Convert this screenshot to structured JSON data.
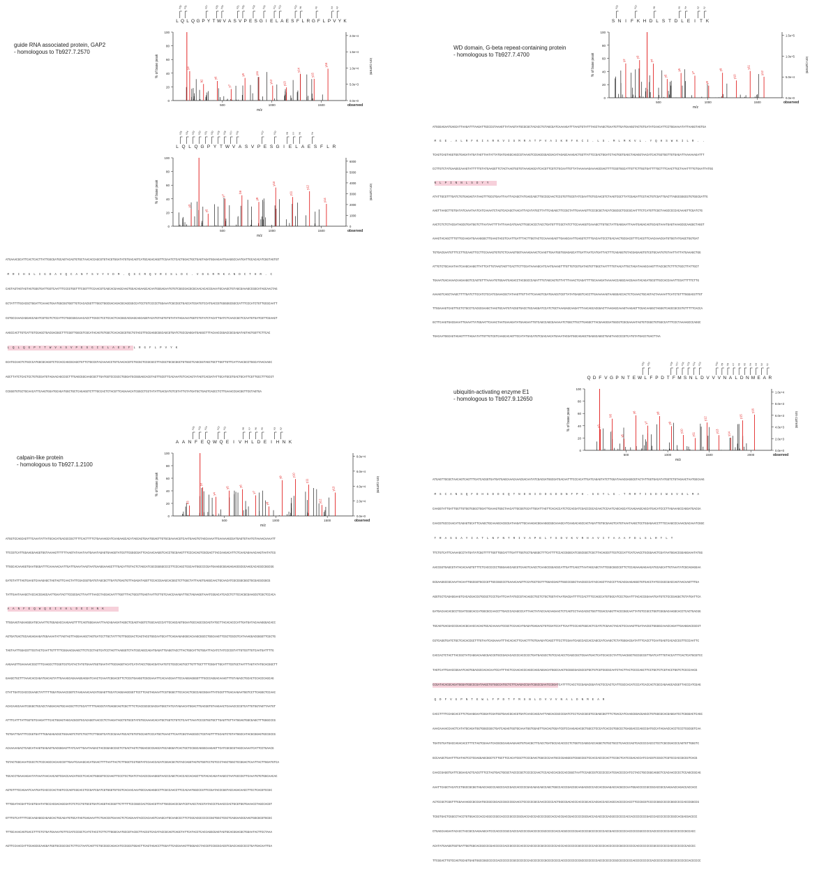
{
  "panels": [
    {
      "id": "gap2",
      "title": "guide RNA associated protein, GAP2",
      "subtitle": "- homologous to Tb927.7.2570",
      "spectra": [
        {
          "peptide": "LQLQGPYTWVASVPESGIELAESFLRGFLPVYK",
          "ylabel": "% of base peak",
          "y2label": "ion current",
          "xlabel": "m/z",
          "observed": "observed",
          "xticks": [
            "500",
            "1000",
            "1500"
          ],
          "yticks": [
            "0",
            "20",
            "40",
            "60",
            "80",
            "100"
          ],
          "y2ticks": [
            "0.0e+0",
            "5.0e+3",
            "1.0e+4",
            "1.5e+4",
            "2.0e+4"
          ],
          "ion_labels": [
            "y3",
            "b2",
            "y6",
            "y7",
            "y9",
            "y11",
            "y12",
            "y13",
            "y14",
            "y15",
            "y16"
          ]
        },
        {
          "peptide": "LQLQGPYTWVASVPESGIELAESFLR",
          "ylabel": "% of base peak",
          "y2label": "ion current",
          "xlabel": "m/z",
          "observed": "observed",
          "xticks": [
            "500",
            "1000",
            "1500"
          ],
          "yticks": [
            "0",
            "20",
            "40",
            "60",
            "80",
            "100"
          ],
          "y2ticks": [
            "0",
            "1000",
            "2000",
            "3000",
            "4000",
            "5000",
            "6000"
          ],
          "ion_labels": [
            "y3",
            "y5",
            "y7",
            "b9",
            "y9",
            "y10",
            "y11",
            "y12",
            "y14"
          ]
        }
      ]
    },
    {
      "id": "wd",
      "title": "WD domain, G-beta repeat-containing protein",
      "subtitle": "- homologous to Tb927.7.4700",
      "spectra": [
        {
          "peptide": "SNIFKHDLSTDLEITK",
          "ylabel": "% of base peak",
          "y2label": "ion current",
          "xlabel": "m/z",
          "observed": "observed",
          "xticks": [
            "500",
            "1000",
            "1500"
          ],
          "yticks": [
            "0",
            "20",
            "40",
            "60",
            "80",
            "100"
          ],
          "y2ticks": [
            "0.0e+0",
            "5.0e+4",
            "1.0e+5",
            "1.5e+5"
          ],
          "ion_labels": [
            "y2",
            "y3",
            "y4",
            "y5",
            "y6",
            "y7",
            "y8",
            "y9",
            "y10",
            "y11",
            "y12"
          ]
        }
      ]
    },
    {
      "id": "e1",
      "title": "ubiquitin-activating enzyme E1",
      "subtitle": "- homologous to Tb927.9.12650",
      "spectra": [
        {
          "peptide": "QDFVGPNTEWLFPDTFMSNLDVVVNALDNMEAR",
          "ylabel": "% of base peak",
          "y2label": "ion current",
          "xlabel": "m/z",
          "observed": "observed",
          "xticks": [
            "500",
            "1000",
            "1500",
            "2000"
          ],
          "yticks": [
            "0",
            "20",
            "40",
            "60",
            "80",
            "100"
          ],
          "y2ticks": [
            "0.0e+0",
            "2.0e+3",
            "4.0e+3",
            "6.0e+3",
            "8.0e+3",
            "1.0e+4"
          ],
          "ion_labels": [
            "y3",
            "b5",
            "y5",
            "y6",
            "y7",
            "y8",
            "y9",
            "y10",
            "y11",
            "y12",
            "y13",
            "y14",
            "y15",
            "y16"
          ]
        }
      ]
    },
    {
      "id": "calpain",
      "title": "calpain-like protein",
      "subtitle": "- homologous to Tb927.1.2100",
      "spectra": [
        {
          "peptide": "AANFEQWQEIVHLDEIHNK",
          "ylabel": "% of base peak",
          "y2label": "ion current",
          "xlabel": "m/z",
          "observed": "observed",
          "xticks": [
            "500",
            "1000",
            "1500"
          ],
          "yticks": [
            "0",
            "20",
            "40",
            "60",
            "80",
            "100"
          ],
          "y2ticks": [
            "0.0e+0",
            "2.0e+4",
            "4.0e+4",
            "6.0e+4",
            "8.0e+4"
          ],
          "ion_labels": [
            "b3",
            "y3",
            "y4",
            "y5",
            "y6",
            "y7",
            "y8",
            "y9",
            "y10",
            "y11",
            "y12",
            "y13"
          ]
        }
      ]
    }
  ],
  "sequence_blocks": [
    {
      "id": "seq-gap2",
      "lines": [
        "ATGAAACGCATTCACTCACTTATTGGCGATGCAGTACAGTGTGCTAACACCAGCGTGTACGTGGATATGTGACAGTCATGCAGACAGGTTCGAATCTCACTGGACTGCTGAGTAGATGGAAGAATGAAGGCCAATGATTGCACACATCGGTAGTGT",
        " M  R  I  H  S  L  I  G  D  A  V  Q  C  A  N  T  S  V  Y  V  D  M  .  Q  S  C  R  Q  V  R  I  S  L  D  C  .  V  D  G  R  M  K  A  N  D  C  T  H  R  .  C",
        "CAGTAGTAGTAGTAGTGGGTGATTGGTCAATTTCCCGTGGTTTCGGTTTCCAACGTCAGCACGAAGCAAGTGGACAGAAGCACAATGGGAGAATGTGTCGGCGACGCGCAACACACCGAAATGCAAGCTGTAGCGAAAGCCGGCATAGCAACTAG",
        "GCTATTTTGCACGCTGGATTCAAAGTGAATGGCGGTGGTTGTCACACGGTTTGGCTGGCGACAGACGCAGCGGCCATCCTGTCCCCCTGGAAATCGCCGCTGACCATCGATGTCCATGACCGTGGGGGCGGCCATTTCCCATCTGTTGCGCAATT",
        "CGTGCCAAACAGGAGCAGATCGTCGTCTCCATTCTGGCGGCAAACACCTTCGCCTCCTCCACTCACGGCACGAGCAGCAGGTACATGTAGTGTGTATATAGAAAATGGTCTGTATCTACATTGATCTCAACCGCTCCAATGTGATCGTTCGAAGT",
        "AAGCCACTTGTCATTGTCGAGCTGACGACGGCTTTCGGTTGGCGTCGCATACAGTGTGGCTCACACGCGTGCTGTACGTTGCGAGGCGGCAGCGTGATCTGCCGAGGATGAGGCTTTACAACCGGACCGCGAGATAGTAGTGGTTCTTCAC",
        " L  Q  L  Q  G  P  Y  T  W  V  A  S  V  P  E  S  G  I  E  L  A  E  S  F  L  R  G  F  L  P  V  Y  K",
        "GCATGCAACTCTGCCCATGGCGCAGGTCTCCACCAGCGCAGCTGTTCTGCCGTACAAAACCTGTCAACACGTCTGCGCTCCGCGCCTTACGCTGCGCGGCTGTGGCTCAGCGGTAGCTGCTTGGTTGTTCATTAACGCCTGGCATAACAAGC",
        "AGCTTATCTCACTCCTGTGCGATGTAGAACAGCCGCTTTGAGCGGCAAGCGCTTGATGGTCCCGCCTGGGATGCGGGAGCACGTAGTTGCGTTCACAAATGTCACAGTATAGTCACGATATTGCATGCGTGACTGCATTCGTTGCCTTTGCGT",
        "CCGGGTGTGCTGCAACATTCAAGTGGATGCAGATGGCTGCTCAGAGGTCTTTGCCACTCTACGTTCAGAAACATCGGCCTCGTATATTGACGATGTCGTATTGTATGATGCTGAGTCAGCCTCTTGAAACCGACGGTTCGTAGTGA"
      ],
      "hl": [
        6
      ]
    },
    {
      "id": "seq-wd",
      "lines": [
        "ATGGGAGAATGAGCATTAAGATTTAAGATTGCCCGTAAAGTTATAAGTATGCGCGCTACACCTGTAGCGATCAAAAGATTTAAGTGTATTTAGCTAAGCTGAATGTTGATGAAGGTACTGTGATATCAACATTCCTGGAAAATATTAAGGTAGTGA",
        " M  G  E  .  A  L  R  F  K  I  A  R  K  V  I  S  M  R  A  T  P  V  A  I  K  R  F  K  C  I  .  L  S  .  M  L  M  K  V  L  .  Y  Q  H  S  W  K  I  L  R  .  .",
        "TCAGTCAGTAGGTGGTGAGATATGATAGTTAATATTATGATGAGGCAGCCGTAAAGTCCGAGCGGACGACATAGAGCAAAGACTGGTTATTCCGACTGGATCTAGTGGTGAGCTAGAGGTAACATCACTGGTGGTTGTGAGATTAAAAAAGATTT",
        "CCTTGTCTATGAAGGCAAAGTATTTTTGTATGAAGGTTCTACTAAGTGGTGTAAAGAGCATCACGTTCGTCTGCAATTGTTATAAAAAAGAAAAGCGAGTTTTCGGTGGCATTGTTCTTGGTGATTTTGCTTTCAACTTGCTAAATTTTGTGAATTATGG",
        " N  L  P  I  N  N  L  S  D  Y  Y",
        "ATATTGCGTTTGATCTGTGAGAGTATAAGTTTGCGTGAATTAATTACAGCTATGAGCAGCTTGCCGCAACTCCGTGTTGCGTATCGAATTGTGCAACGTCTAAGTCGCTTATCGAGATTCGTACTGTCGATTGACTTAGGCGGGCGTGTGGCGATTG",
        "AAGTTAAGCTTGTGATATCAAATAATCATCAAAATCTAGTCACAGCTAACATTACATATGCTTATTCAGAGCTTCCGCTATTGAAAAGTTCCCGCGCTACATCGGCGCTCGCGCAATTTCTCATGTTCGCTAAGCCCCCACAAAGTTCGATCTG",
        "AACTCTCTCTACGATAGCGTGATGGTCTTAATAATTTTATTAAACATGAACTTGGCACCCTACCTGATGTTTCGCTATCTTCCAAAGGTCAAAGCTTGTGCTATTGAGGAATTAAATGAGACAGTGCAGTAAATGAGTAAAGCGCAAGGCTAGGT",
        "AAAGTACAGCTTTGTTGCAAGATGAAAGGGCTTGAAGTACGTCAATTGATTTACTTGGTACTCCAAAAGAGTTGAAGCAATTGAGGTCTTTGACAATCCCTGACAACTGCGACGTTTCACGTTCAACAAACGATGTGGTATGAGCTGGTGAT",
        "TGTGACGAATGTTTCCTTGCAAGTTCCTTCCAAAGTGTGTCTCAAAGTGGTAAAAGAAACTCAAGTTGAATGGTGGAGAGCATTGATTAATCATGATTACTTTCAGAGGTGTACGAGAAGTGTCGTGCAATGTGTAATTATTATGAAAGCTGG",
        "ATTGTCTGCAAATAATCAAGCAAGGTTATTCATTGTAAGTAGTTCACTTCTTCGATAAAAGCATCAATGAAAGTTTGTTGTCGTGATAGTGTTGGCTAATTTTGTAACATTGCTAGATAAAGCAAGTTTACCGCTCTTTCTGCCTTATTGCT",
        "TGAAATGACAAAACAAGAAGGTCCAGTGTTTAAAATGTGGAATGAGACCTACGGCCCAGATTTGTAGCAGTGTTATTTAAACTCAGATTTTGCAAAGATAAAAACCAGGCAACGAAATACAGATGCGTTGCCACCAAATTCGATTTTTCTTG",
        "AAAAGTCAGCTAAGCTTTTGATCTTCCATCTCCATCGAAACGCTATAAGTTGTTATTCAAAGTCGATGAACGTCGTTATATGAGGTCACCTTGAAAAAAGTAAGGGACCACTCTCAAACTGCAGTACTAAAAATTCATCTGTTTGGGACGTTGT",
        "TTGGAAAGTCAGTTGCTCTGCCTCACGCGAAGCTAAGTGCAATGTACGGTGACCTGCAAGGATCCATCTGCTAAAGAGCAAGATTTAACAGCACGGACTTAAGAGCAAAGTAAGAGTTCGACAAGGCTAGGGTCAGCCGCCGTGTTTTTCACCA",
        "GCTTCAAGTGACGAAATTGAAATTATGGAATTCAAACTAATGAAAGATATGAAGAATTGTCAGCCAGCGAAAAATCTGGCTTGCTTGAGGCTTACGAAGCGATGGCGTCGCGAAAATAGTGTCGGCTGTGGCCATTTCCCTAAAAGCCCAGGC",
        "TGACAATGGCAGTAGAGTTTTAGAATATTGTTGTCGTCAAGCACAGTTCCATATGACATGTCGACAACATGAAATACGATGGCAGAGCTGAGGCAGGCTGAGTAACCCCGTCATGTATGACCTGACTTAA"
      ],
      "hl": [
        4
      ]
    },
    {
      "id": "seq-calpain",
      "lines": [
        "ATGGTCCAGCAGTTTCAAATATTATGCACATGACGCCGCTTTTCACTTTTCTGAAAAGCATCAAGAAGCACATAGCAGTGAATGGAGTTGTGCGAAAACGTCAATGAAGTGTAGCAAAATTGAAAAAGCGATGAGTGTAATGTAAAACAAAATT",
        "TTCCGTCATTGGAAGGAAGGTGGTAAAAGTTTTTTAAGTATAAATAATGAAATAGAGTGAAGGTATCGTTCGGGCGATTCACAACAAGGTCACCTGCGAAGTTTCCCACAGTCGCGACTTACCAAGACATTCTCAACAGAAACAAGTAATATCG",
        "TTGGCACAAAGGTGAATGGGATTTCAAAAACAATTGATTGAAATAAGTAATGAAGGAAAGCTTTGACATTGTACTCTAGCATCGCCGGGGCCCCTTCCCAGCTCGCAATGGCCCCGATGAAGGCGGAGAGAGCGCGCAAGCACACGCCGGCGG",
        "GATGTATTTAGTGAAGTCAAAGAGCTAGTAGTTCAACTATTCGACGGTGATGTAGCGCTTGATGTGAGTGTTAGAGATAGGTTCCACCGAAGCACGGCTCTTGGCTATTAAGTGAGGCAACTGCAACATCGCCGGCGGCTGCGACGCGGCG",
        "TATTGAATAAAGCTACCACCGAGCAATTGAATACTTCCGCGACTTAATTTAACCTACGACAATTTGGTTTACTGCGTTGAGTAATTGTTGTCAACCAAAGATTGCTAGAAGGTAAATCGGACATCACCTCTTCCACGCGAAGCGTCGCTCCACA",
        " A  A  N  F  E  Q  W  Q  E  I  V  H  L  D  E  I  H  N  K",
        "TTGGAAGTAGAAGGGATGCAAATTGTGGAGACCAAGAAGTTTTCAGTGGGAAAATTAACAGAAGATAGGCTCGAGTAGGTCTGGCAACCCATTCCAGCAGTGGAATGCCAGCCGCAGTATGCTTACACACCCATTGATGATACAAAGGGACACC",
        "AGTGATGACTGCAAGAGAAGATGGAAAATATTAGTAGTTAGGAAAGCTAGTGATCCTTGCTATTTGTTGGCGACTCAGTACGTGGCAATGCATTCAGAAGAGGGCACAAGCGGCCTGGCAAGTTCGCTCGCGTCATAAAGGACGGGGTTCGCTG",
        "TAGTAATTGGACGTTCGTACTCAATTGTTTTTCGGAACGAAGCTTCTCCCTAGTCATCCTAGTTAAGGGTCTATCGCAGCCAGATGAGATTGAGGTACCTTACTGGCATTGTGGATTACATCTATCCCCGTATTGTCGTTGTCAATGATTTTG",
        "AAGAAGTTGAAAAACCGCTTTCAAGCCTTCGGTCGTCATACTATGTGAAATGGTGAATATTGCGAGGTACATCATATACCTGGACGATAATGTCTCGCCAGTGCTTGTTTGCTTTTCGGATTGCATTTCGTGCTAATTTAGTATATGCACGGCTT",
        "GAAGCTGCTTTAAACACCAGATGACAGTATTGAAAGCAGAAAGGAGGATCAACTCAAATCGGACGTTCTCCGTGAAGGTCGCGAAATTCACAACGAATTCCAAGGAGGGGTTTGCCCAGGACAAAGTTTGTAGACCTGCACTCCACCCAGCAG",
        "CTATTGATCCACCCGAAGCTATTTTTGGATGAAACCGGTCTAAGAAACAACATGGAGTTGCATCAGGAAGCGGTTCCTTCAGTAGAAATTCGTGGGCTTCCACACTCGCCAGCGGAATTATGCGTTTGACAAGAATGGTCCTTCAGGCTCCAAC",
        "ACACAAGCAAATCGGGCTGCACCTAGGACAGTGCAACGCTTCTGCATTTTTGAGCGTATGAGGCAGTCGCTTTCTCACCGCGCGACGATGGCTATCATAGAACATGGACTTGACGGTGTAAGAACTCAAACCCCGTCATTGTGGTAGTTAATGT",
        "ATTTCATTTATTGGTGTCAAGATTTCACTGGAGTAGCACGCGTGCACAGGTAACCCTCTAAGATAGCTGTGCGTATGTGCAAAACACATGCTGGTCTGTCTCAATTAAATCCCGTGGTGCTTGAGTTGTTATGGAGTGGCGAGCTTTGGGCCCG",
        "TGTGATTGATTTCCGGTGATTTGGAGAGACGCTGGAAGTCTGTCTGCTTCTTGGGTCATCCCGAAATGCACTGTGTGCCAGTCCCATGCTGAACTTCAATCGGTAAGCGCCTCGTAGTTTTGCAGTCTGTATGGCCATACGCGGAGTGCCGCCG",
        "ACAAAAAGACTCAGCATAAGTGAGAGTGACGGGAGTTATCAATTGAATAAGACTACCGGAGCCGCTCTGACTAGTCTGGACGCCGAGCATGCAGGGATCACTGCTCCGGCAGGGCAAGAGTTCATCGCGCGTAGCCAAAATCATTCCTGAACG",
        "TGTACTGGCAAATCGCCTCTCCCAGCCACAACCGTTGAATCAAAGCACATGAACTTTTAATTACTCTTGGCTCGTGGTATCCAACCACATCGGACGCTGTACCAGGTAGTGTGGTCCTGTCCCTAGCTGGCTCCGGACTCAATTACTTGGATGTCA",
        "TGCACCTGAAAAGAATATAAATAACAACAGTCGACCAACATGCCTCACACTGGGGTCCCAAGTTCCCTCCTGATCTACACCCGAAGGGTAACCCAGCTCACCACCACAGCTTGTACACAGATAAGCCTAATGCCCGTTCAAATGTGTGGCAACAC",
        "AGTGTTTCCAGAATCAATGATCACCCCACTAGTCCCAGTCGCACCTCCGATCGATCGTGGGTGTCGTCACAACAAATGCCAAGAGGCCTTCGCCAACCTTCCACAATGGCCCGTTCCGATACCCGGTACCAGACAACCTTCCTCACGTCCGC",
        "TTTGGATACGATTCAGTGAATATGCCACGACAGCGATCTCTCCTGTGCGTGATCAGGTACCGGTTCTTTTTCCCGGCCACTCGACGTTATTGGCGACCCGATCGTAACCTACGTATACCCTGAACCCACTGCGTGGTGAAACCTAGCCACGT",
        "GTTTGTCATTTTCGCAAGAGGCAGAGCACTGCAGATGTGCATAGTGAGAAATTCTGACCGTGAAACTCTCAGAAATACCCACAAGTCAAGCATGCAAGCCCTTCTCGCACGCCCCCCGGTGGCTCGCTCAGGAACGCAAGTGGCGCGTGCGC",
        "TTTGCAAACAGTGACCTTTCTCTGATGAAAATGTTCCATCCCGCTCATCTACCTCTTCTTGGGCAATGCCGTACGCTTACCGTCACATACCGCAGTCAGCTATTCATACCTCACCAGGCGAGTAGTGCACGGACGCTGGAATACTTCCTAAA",
        "AGTTCCAACCATTCGAGCGCAAGGATGGTGCCGCCGCTCTTCCTAATCAGTTCTGCCGCCAGACATCCCGCGTGGACTTCAGTAGACCTTGGATTCACGAAAGTTGGGACCTACCGTCCGCGCACGTCGACCAGCCCCCTGATGACAATTGA"
      ],
      "hl": [
        5
      ]
    },
    {
      "id": "seq-e1",
      "lines": [
        "ATGAGTTGCGCTAACAGTCAGTTTGATCACGGTGATGATGAGCAAACAAACGACAATATCGACGATGGCGATGACAATTTCCCACATTGATCAGAGTATCTTGGATAAACGAGGCGTACTATTGGTGACATATGGTCTGTAGAACTAATGGCAAG",
        " M  S  C  A  N  S  Q  F  D  H  G  D  D  E  Q  T  N  D  N  I  D  D  G  D  D  N  F  P  H  .  S  E  Y  L  G  .  T  R  R  T  I  G  D  I  W  S  V  E  L  M  A",
        "CAAGGTATTGATTGGTTGTGGTGGGCTGGATTGAAAGTGGCTAACATTGCGGTGCATTGGATTAGTTCACACCATCTCCACGATCGACCCGCACAACTCCAATCAGCAGCATCAAGAAGCAGCATGACATCCCTTAGAAAGCCAGGATGACGA",
        "CAACGTGCCCAACATCAGAGTGCATTCAAGCTGCAAAGCACGCGATAAGATTGCAAAGACGGAAGGCGGCAAAGCATCAAGACAGCCACTAGATTGTGCGAAGTCATGTAAATAAGCTCCTGGAGAACCTTTCCAAGCCCAAACGACAAATCGGC",
        " T  R  A  S  G  A  Y  I  A  T  L  N  F  N  T  R  I  V  A  P  E  L  T  S  D  V  K  V  R  H  A  V  I  T  A  A  A  F  D  L  S  L  R  T  L  T",
        "TTCTGTCATTCAAAAGCCTATGATATCGGTTTTTGGTTGGCATTTGATTTGGTGCTGAGGGCTTTCATTTTCCACCGGGCATCGGCGGCTCGCTTACAGCGTTCGTCCCATTCATCAACCTGCGGAACTCGATAATGGACCGGAGGAAATATGG",
        "AACCGGTGAGCGTATACACAAGTGTTTCTCACCCCCCTGGGAAGCAGCGTCAAGTCAACCTCAAGCCGGACGCATTGATTCAGCTTAATAGCAGCTATTCGGCGGCCGTTCTCCAGAAAGAGAACATGCAGCATTGTAAATATCGCAGAGGAA",
        "GCGAAGGCCGCAAATACAATTGGCGGTGCCCGTTGCCGGCCCTGAAACAAGTTCCATGCTCGTTTGGACGAGTTGGCCCGGCTAACGCCCATACCAGCTTACCCTTACACGAAGAGGCTGTGACCTATCCCGCCGACCAGTAACAAGTTTGA",
        "AGGTGCTCAGAGGAAGTCACACGACCGTGCGCTCCCTGATTCAATATGCCGTACAGCCTGCTCTGCTGGTATAATGACGATTTTCCACTTTCCAGCCATGTGGCATCCCTGAATTTACACCGGAAATGATGTCTCCCGAGGCTGTATGATTCA",
        "GATGACAACACGCCTCGATCGGCACCATGGCGCCAACCTTGACCCACAGCCCATTAACTATACCAACAAGAACTCTCAGTCCTAACACGCTGGTTCGACCAGGTTACCCGGCAATTATGTCCGCCTGGTCGGGACAAGGCACCTCACTGACGG",
        "TGCAGTGACGACCCGACACGCAACCACAGTGCACAAAAATCCGCTCCAACATGAGATGAGAACTGTCGATCCATTCAATTCCCAGTGGCACTCCATCTCGAACTACACTCCAAAGTTGATAACGCTGGGGCAAACCAGATTGAAGGACCGCGT",
        "CGTCAGGTGATCTGCTCACACCGCTTTGTAATCAGAAAATTTACACACTTCAACTTTGTGAAGATCAGCTTTCCTTCGAATCAGCCACCACCAGCCATCAAGCTCTATGGGACGATATTTCACCTTCAATGAGTCACACCCGTTCCCAATTC",
        "CACCACTCTACTTACCGCTATCAGGACAAGCGACCGTGCCGACACACCCCACCCCCTGATGACGCCTGTCCACACCTCAGCCGCTCGAATGACTCATCCACCCTATTCAACGGCTGCCGCCGTTGATCATTTGTACCATTTCACTCATGCGTCC",
        "TAGTCATTGAACCGGAATCAGTGGACGCCACACAATCCATTTACTCCAACACCCAGCCAGCAGGACATGGCCAACTGCGGCGACGCCGTGCTGTCGTCGCGCAATCTACTTACTCCCCAGCTTCCTGCTCTCGTACCTGGTCTCCCCAACG",
        "CCGATACACGCAGATGGGATGGCCCGATAAGCTGTGGCCATGCTCTTCAAGACCGATCGGCCGAATCCGGATCATTTTCACCTCCGAGACGGATACTCCCACTCATTCGCCACATCCCATCACCACTCGCCAGAAGCACGGTTACCCATCGAG",
        " Q  D  F  V  G  P  N  T  E  W  L  F  P  D  T  F  M  S  N  L  D  V  V  V  N  A  L  D  N  M  E  A  R",
        "CACCTTTTCCAGCACCTTCTGAAGGAATCGGATCGATGGTGAACGCACGTGATCAACCAGCAATTAGCACCGCCCGATCTCCTCACCGCGTCCGAGCGGTTTCTGACCATCAAGCGGACGAGCCTGTGGCGCACGAGGATCCTCGGGACTCAGC",
        "AAACAAAACCAACTCATATGCAGATGGTGGGCGGCTGATCAGAGTGGTGCAAATGGTGGAGTTGACAGTGGATCGTCCAAGAGACGCTGGCCTCCCATCACCGTGGCCCTGAGGACCCAGCCGATGCCATAGAACCACCTCCCTCGCGGTCAA",
        "TGATGTGATGACCAGACACCTTTCTAGTCGAAATCACGCGCAAGAAGAAGTGTGACGCTTCACCTGATGCCACACCCCTCTGGTCCAGGCACCAGGCTGTGCTGCCTCAACCCAGTCACCCCCACCCTCCTCGCCGACCCCAGTGTTGGGTC",
        "GCCAAGCTGAATTTGATAGTCCTCGAGGAGCGGCTCTTGCTTCCACATCGCTTCCCGAACTGGCCCCAATGCCCGAGGCGTCGGCCGCTCCACCACCCCACTTCCGCTCATCCGACACCATCCACGTCCGCCTCGTCCCACCGCCGTCACG",
        "CAACCGAGGTGATTCGGAACACTCACGTTTCCTAGTGACTGCGCTACCCCGCTCCCCCCAACTCCACACCACGCCACCGGCTAATTCCAGCCGTCCCCCCCATCGACCCCCATCCTACCTGCCGGCAGGCTCCACAACCCCCTCCAGCCGCAG",
        "AAATTCAGCTACATCCTGGCCGCGGTAGACCAGCCCAGCCCACCGACCACCCCCGACAGACAGCCAGCTGGCCACCCGACCGCAAGACGCCCACCACCGAAGACCACGCCCAATGGACCCCCGCCGCACCGCCAAGAACCAGACCACCACC",
        "ACTCCGCTCGGTTTGGAAAAGCCGCCGATGCCGCCGCACCCGCCCGCAACCTCCCCCCGCCAACCCCCCACTGGCCGACACCCACCCGCACCACGACCACCAGCCACCCCCACCTTCCCGCGTCCCCCGGCCCCCCGGCCCCCACCCGGCCG",
        "TCGGTGACTCGGCCTACCTGTGGACCCACCACGCCCGCCACCCCGCCCCGCGACCACCCACCCCCGCCACCACCGACCGACCCCCCGCGACCACACCCCCACGCCCCCCCACCACCCCCCCCGACCCACCCCCCCCCGCCACGACGACCCC",
        "CTGAGCAAGAATACACCTACCGCCAAGAAGCATCCCACCCCCGCCACCCACCCCCGACCCCCCGCCCCCCACCACGCCCCCCGACCCCCGCCCCCCCCACCGACCCCCCCCACCCCCCGCCCCCCACCCCCCCCCACCCCCCCCGCCACC",
        "ACATATGAAGGTGGTGATTGGTGGCACCGCCCCGACCCCCCACCGCCCCCACCCCACCCCCCGCCCCCCCCACCCACCCCCCCGCCCCCCCCACCCCCCACCCCCCCGCCCCCCCCACCCCCCCCCGCCCCCCCCACCCCCCCCCACCCC",
        "TTCGGACTTGTCCAGTGCAGTGAGTGGCCGGCCCCCCACCCCCCCCGCCCCCCCCACCCCCCCCGCCCCCCCCACCCCCCCCCCGCCCCCCCCCACCCCCCCCCGCCCCCCCCCACCCCCCCCCCACCCCCCCCCGCCCCCCCCCCACCCCCC"
      ],
      "hl": [
        14
      ]
    }
  ]
}
